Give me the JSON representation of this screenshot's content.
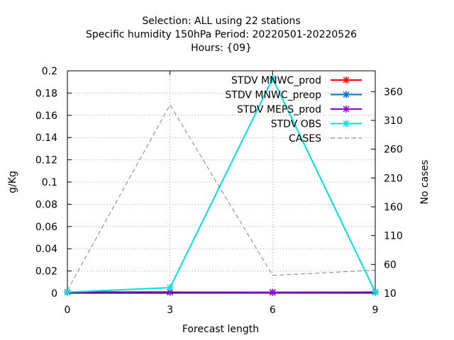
{
  "chart_data": {
    "type": "line",
    "title_lines": [
      "Selection: ALL using     22 stations",
      "Specific humidity 150hPa   Period: 20220501-20220526",
      "Hours: {09}"
    ],
    "xlabel": "Forecast length",
    "ylabel": "g/Kg",
    "y2label": "No cases",
    "x_ticks": [
      0,
      3,
      6,
      9
    ],
    "xlim": [
      0,
      9
    ],
    "ylim": [
      0,
      0.2
    ],
    "y_ticks": [
      0,
      0.02,
      0.04,
      0.06,
      0.08,
      0.1,
      0.12,
      0.14,
      0.16,
      0.18,
      0.2
    ],
    "y2lim": [
      10,
      396
    ],
    "y2_ticks": [
      10,
      60,
      110,
      160,
      210,
      260,
      310,
      360
    ],
    "grid": true,
    "legend_position": "top-right",
    "x": [
      0,
      3,
      6,
      9
    ],
    "series": [
      {
        "name": "STDV MNWC_prod",
        "color": "#ff0000",
        "dash": "",
        "axis": "y1",
        "values": [
          0.001,
          0.001,
          0.0008,
          0.001
        ]
      },
      {
        "name": "STDV MNWC_preop",
        "color": "#0070d0",
        "dash": "",
        "axis": "y1",
        "values": [
          0.001,
          0.001,
          0.0008,
          0.001
        ]
      },
      {
        "name": "STDV MEPS_prod",
        "color": "#9400d3",
        "dash": "",
        "axis": "y1",
        "values": [
          0.001,
          0.001,
          0.0008,
          0.001
        ]
      },
      {
        "name": "STDV OBS",
        "color": "#00e0e0",
        "dash": "",
        "axis": "y1",
        "values": [
          0.001,
          0.005,
          0.193,
          0.001
        ]
      },
      {
        "name": "CASES",
        "color": "#808080",
        "dash": "6,4",
        "axis": "y2",
        "values": [
          15,
          337,
          41,
          50
        ]
      }
    ]
  }
}
